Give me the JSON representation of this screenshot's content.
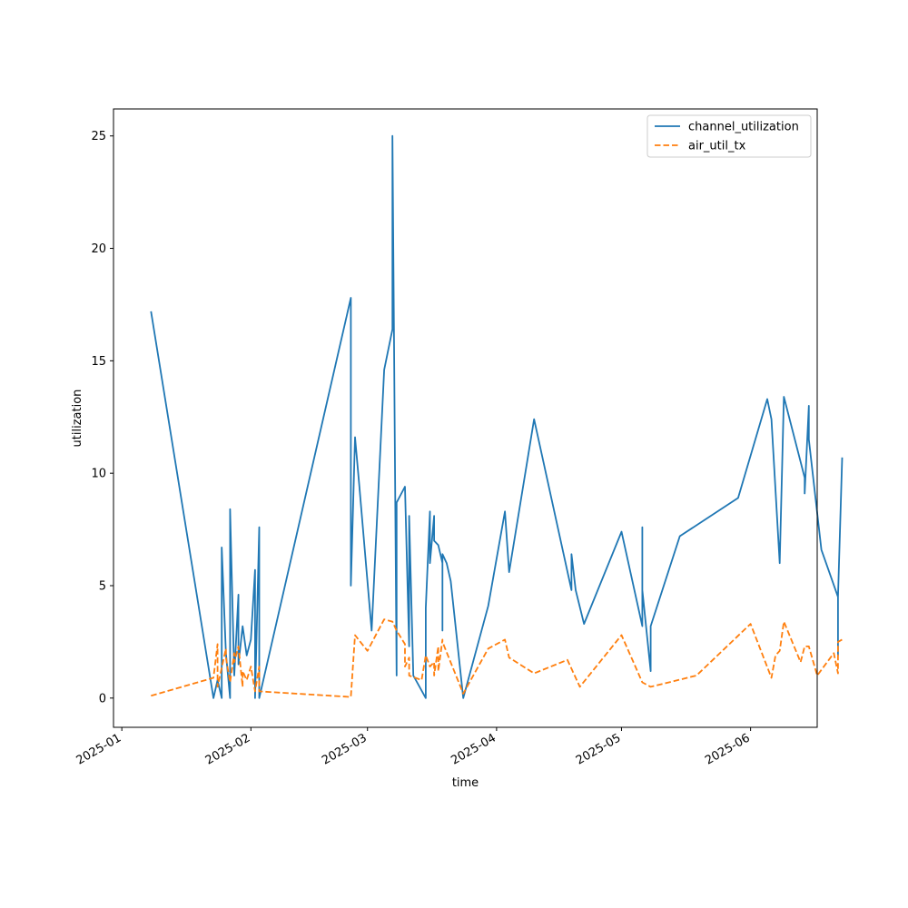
{
  "chart_data": {
    "type": "line",
    "title": "",
    "xlabel": "time",
    "ylabel": "utilization",
    "x_axis_kind": "date",
    "xlim": [
      "2024-12-30",
      "2025-06-17"
    ],
    "ylim": [
      -1.3,
      26.2
    ],
    "x_ticks": [
      {
        "date": "2025-01-01",
        "label": "2025-01"
      },
      {
        "date": "2025-02-01",
        "label": "2025-02"
      },
      {
        "date": "2025-03-01",
        "label": "2025-03"
      },
      {
        "date": "2025-04-01",
        "label": "2025-04"
      },
      {
        "date": "2025-05-01",
        "label": "2025-05"
      },
      {
        "date": "2025-06-01",
        "label": "2025-06"
      }
    ],
    "y_ticks": [
      0,
      5,
      10,
      15,
      20,
      25
    ],
    "grid": false,
    "legend_position": "top-right",
    "series": [
      {
        "name": "channel_utilization",
        "color": "#1f77b4",
        "dash": "solid",
        "points": [
          [
            "2025-01-08",
            17.2
          ],
          [
            "2025-01-23",
            0.0
          ],
          [
            "2025-01-24",
            0.8
          ],
          [
            "2025-01-25",
            0.0
          ],
          [
            "2025-01-25",
            6.7
          ],
          [
            "2025-01-26",
            2.0
          ],
          [
            "2025-01-27",
            0.0
          ],
          [
            "2025-01-27",
            8.4
          ],
          [
            "2025-01-28",
            1.0
          ],
          [
            "2025-01-29",
            4.6
          ],
          [
            "2025-01-29",
            1.5
          ],
          [
            "2025-01-30",
            3.2
          ],
          [
            "2025-01-31",
            1.9
          ],
          [
            "2025-02-01",
            2.6
          ],
          [
            "2025-02-02",
            5.7
          ],
          [
            "2025-02-02",
            0.0
          ],
          [
            "2025-02-03",
            7.6
          ],
          [
            "2025-02-03",
            0.0
          ],
          [
            "2025-02-25",
            17.8
          ],
          [
            "2025-02-25",
            5.0
          ],
          [
            "2025-02-26",
            11.6
          ],
          [
            "2025-02-27",
            9.5
          ],
          [
            "2025-03-02",
            3.0
          ],
          [
            "2025-03-05",
            14.6
          ],
          [
            "2025-03-07",
            16.4
          ],
          [
            "2025-03-07",
            25.0
          ],
          [
            "2025-03-08",
            1.0
          ],
          [
            "2025-03-08",
            8.7
          ],
          [
            "2025-03-10",
            9.4
          ],
          [
            "2025-03-11",
            2.3
          ],
          [
            "2025-03-11",
            8.1
          ],
          [
            "2025-03-12",
            1.0
          ],
          [
            "2025-03-15",
            0.0
          ],
          [
            "2025-03-15",
            4.0
          ],
          [
            "2025-03-16",
            8.3
          ],
          [
            "2025-03-16",
            6.0
          ],
          [
            "2025-03-17",
            8.1
          ],
          [
            "2025-03-17",
            7.0
          ],
          [
            "2025-03-18",
            6.8
          ],
          [
            "2025-03-19",
            6.0
          ],
          [
            "2025-03-19",
            3.0
          ],
          [
            "2025-03-19",
            6.4
          ],
          [
            "2025-03-20",
            6.0
          ],
          [
            "2025-03-21",
            5.2
          ],
          [
            "2025-03-24",
            0.0
          ],
          [
            "2025-03-30",
            4.1
          ],
          [
            "2025-04-03",
            8.3
          ],
          [
            "2025-04-04",
            5.6
          ],
          [
            "2025-04-10",
            12.4
          ],
          [
            "2025-04-19",
            4.8
          ],
          [
            "2025-04-19",
            6.4
          ],
          [
            "2025-04-20",
            4.8
          ],
          [
            "2025-04-22",
            3.3
          ],
          [
            "2025-05-01",
            7.4
          ],
          [
            "2025-05-06",
            3.2
          ],
          [
            "2025-05-06",
            7.6
          ],
          [
            "2025-05-06",
            4.8
          ],
          [
            "2025-05-08",
            1.2
          ],
          [
            "2025-05-08",
            3.2
          ],
          [
            "2025-05-15",
            7.2
          ],
          [
            "2025-05-29",
            8.9
          ],
          [
            "2025-06-05",
            13.3
          ],
          [
            "2025-06-06",
            12.4
          ],
          [
            "2025-06-08",
            6.0
          ],
          [
            "2025-06-09",
            13.4
          ],
          [
            "2025-06-14",
            9.8
          ],
          [
            "2025-06-14",
            9.1
          ],
          [
            "2025-06-15",
            13.0
          ],
          [
            "2025-06-15",
            11.5
          ],
          [
            "2025-06-18",
            6.6
          ],
          [
            "2025-06-22",
            4.5
          ],
          [
            "2025-06-22",
            1.9
          ],
          [
            "2025-06-22",
            4.5
          ],
          [
            "2025-06-23",
            10.7
          ]
        ]
      },
      {
        "name": "air_util_tx",
        "color": "#ff7f0e",
        "dash": "dashed",
        "points": [
          [
            "2025-01-08",
            0.1
          ],
          [
            "2025-01-23",
            0.9
          ],
          [
            "2025-01-24",
            2.4
          ],
          [
            "2025-01-24",
            0.5
          ],
          [
            "2025-01-26",
            2.2
          ],
          [
            "2025-01-26",
            1.8
          ],
          [
            "2025-01-27",
            0.7
          ],
          [
            "2025-01-28",
            2.0
          ],
          [
            "2025-01-28",
            1.6
          ],
          [
            "2025-01-29",
            2.3
          ],
          [
            "2025-01-30",
            0.5
          ],
          [
            "2025-01-30",
            1.2
          ],
          [
            "2025-01-31",
            0.8
          ],
          [
            "2025-02-01",
            1.4
          ],
          [
            "2025-02-02",
            0.3
          ],
          [
            "2025-02-03",
            1.4
          ],
          [
            "2025-02-03",
            0.3
          ],
          [
            "2025-02-25",
            0.05
          ],
          [
            "2025-02-26",
            2.8
          ],
          [
            "2025-03-01",
            2.1
          ],
          [
            "2025-03-05",
            3.5
          ],
          [
            "2025-03-07",
            3.4
          ],
          [
            "2025-03-08",
            3.0
          ],
          [
            "2025-03-10",
            2.4
          ],
          [
            "2025-03-10",
            1.4
          ],
          [
            "2025-03-11",
            1.8
          ],
          [
            "2025-03-11",
            1.0
          ],
          [
            "2025-03-14",
            0.8
          ],
          [
            "2025-03-15",
            1.9
          ],
          [
            "2025-03-16",
            1.4
          ],
          [
            "2025-03-17",
            1.6
          ],
          [
            "2025-03-17",
            1.0
          ],
          [
            "2025-03-18",
            2.3
          ],
          [
            "2025-03-18",
            1.2
          ],
          [
            "2025-03-19",
            2.6
          ],
          [
            "2025-03-19",
            2.5
          ],
          [
            "2025-03-24",
            0.2
          ],
          [
            "2025-03-30",
            2.2
          ],
          [
            "2025-04-03",
            2.6
          ],
          [
            "2025-04-04",
            1.8
          ],
          [
            "2025-04-10",
            1.1
          ],
          [
            "2025-04-18",
            1.7
          ],
          [
            "2025-04-21",
            0.5
          ],
          [
            "2025-05-01",
            2.8
          ],
          [
            "2025-05-06",
            0.7
          ],
          [
            "2025-05-08",
            0.5
          ],
          [
            "2025-05-19",
            1.0
          ],
          [
            "2025-06-01",
            3.3
          ],
          [
            "2025-06-06",
            0.9
          ],
          [
            "2025-06-07",
            1.9
          ],
          [
            "2025-06-08",
            2.1
          ],
          [
            "2025-06-09",
            3.4
          ],
          [
            "2025-06-13",
            1.6
          ],
          [
            "2025-06-14",
            2.3
          ],
          [
            "2025-06-15",
            2.3
          ],
          [
            "2025-06-17",
            1.0
          ],
          [
            "2025-06-21",
            2.0
          ],
          [
            "2025-06-22",
            1.1
          ],
          [
            "2025-06-22",
            2.5
          ],
          [
            "2025-06-23",
            2.6
          ]
        ]
      }
    ]
  }
}
